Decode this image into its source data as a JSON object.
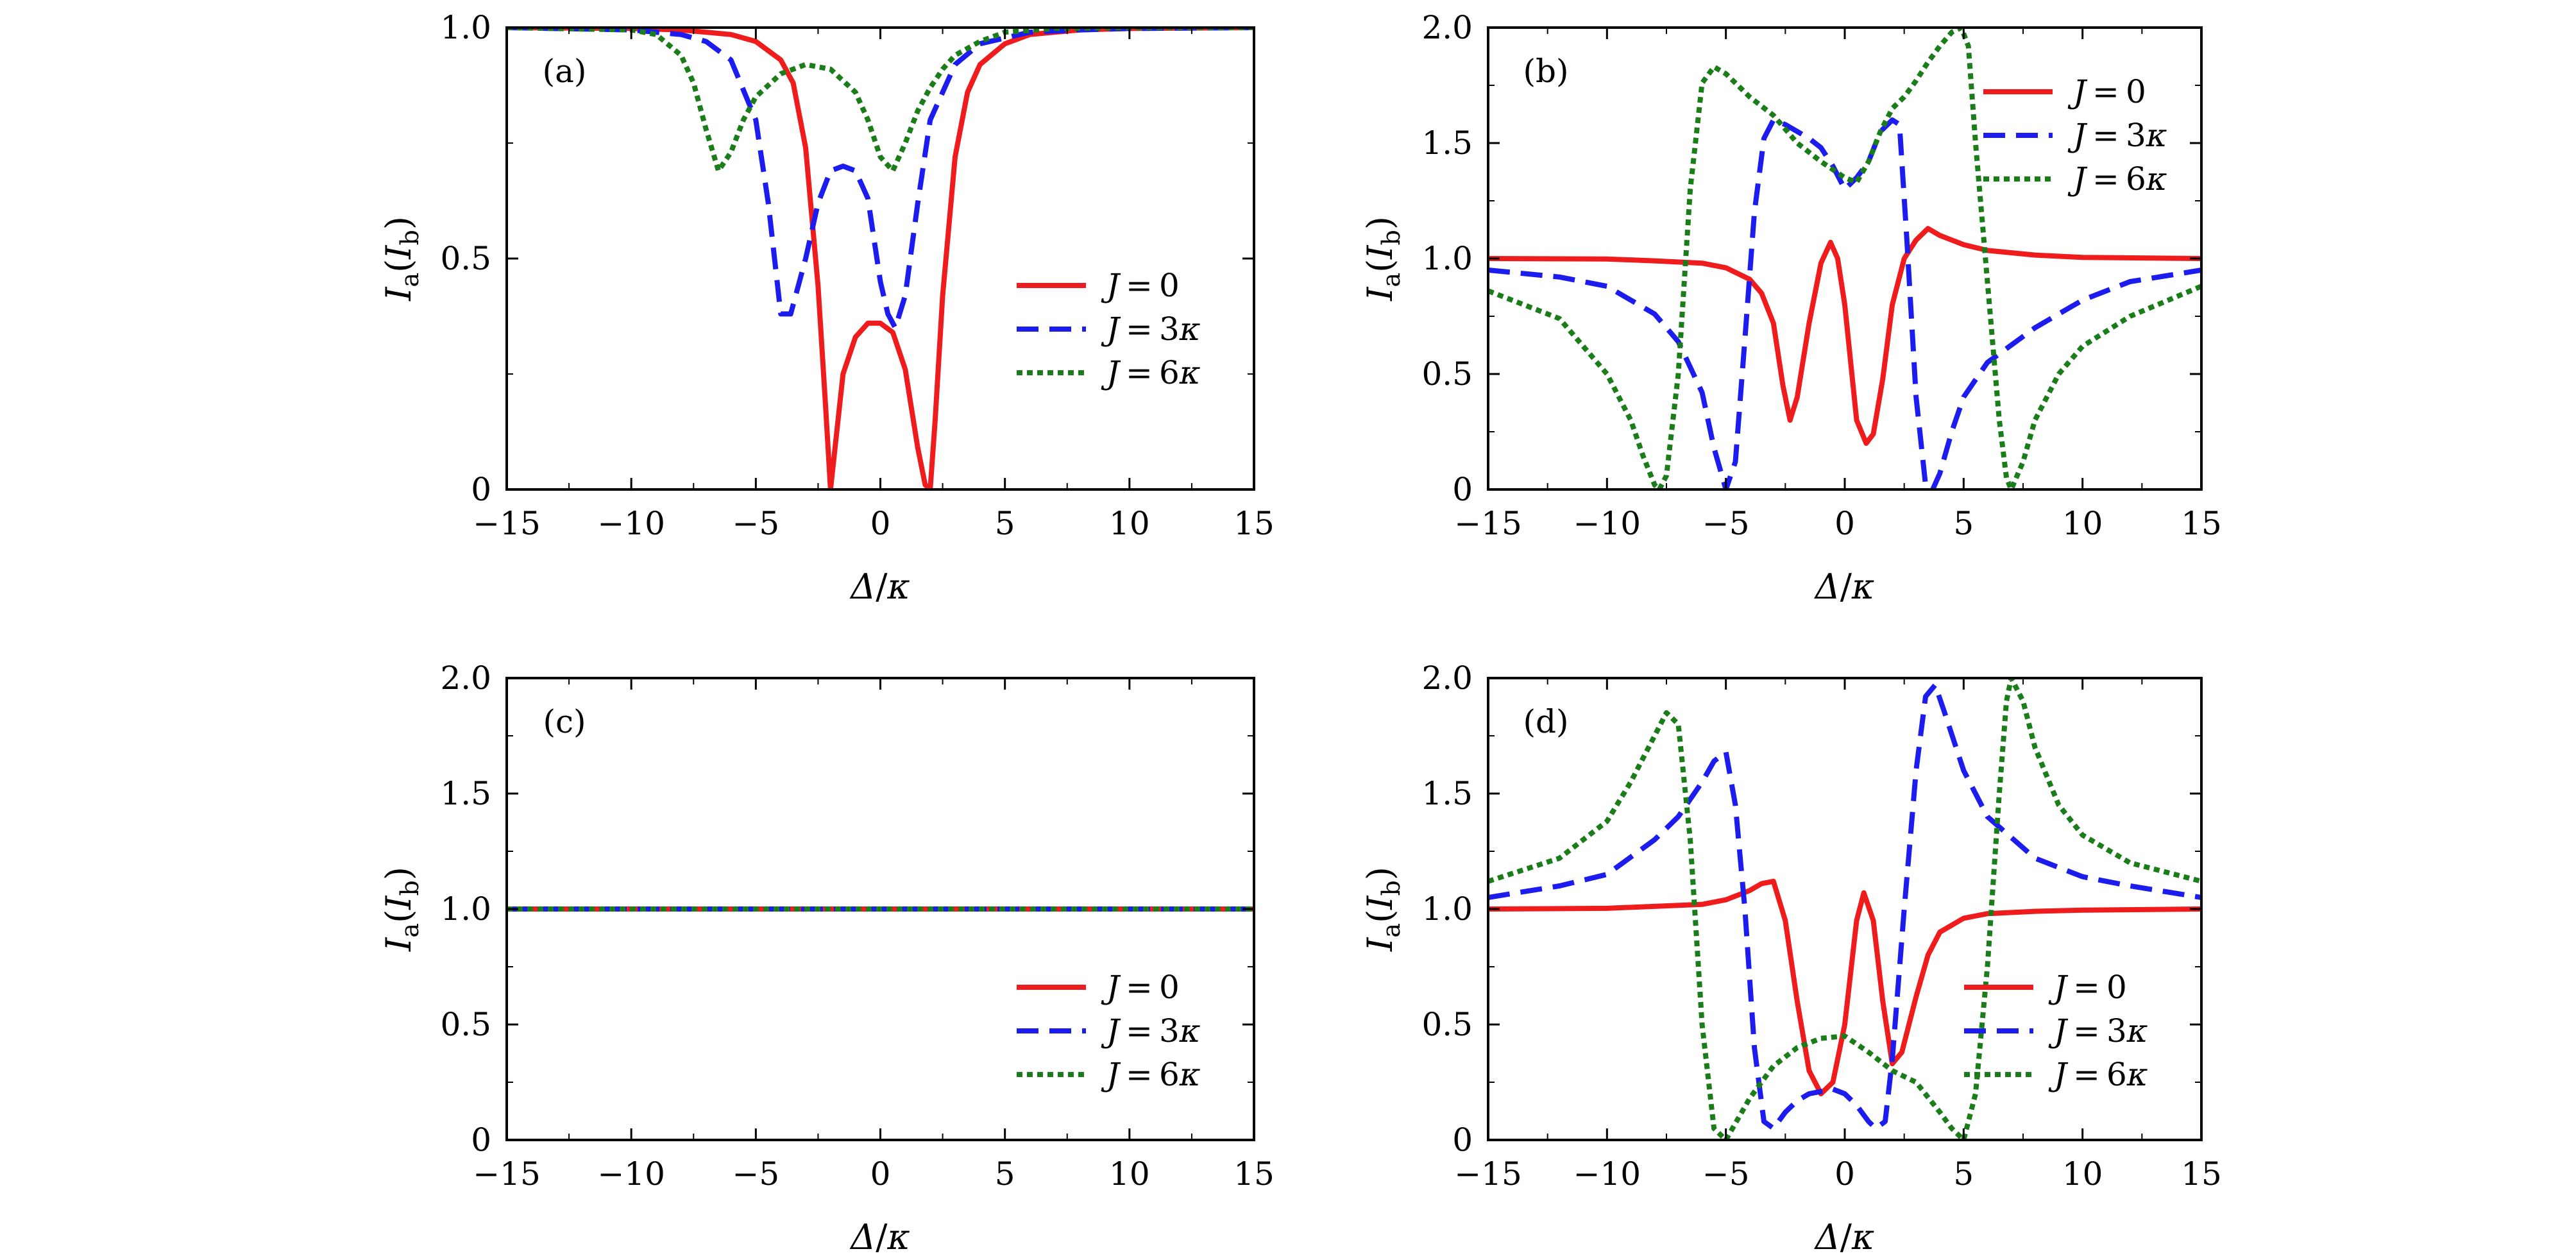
{
  "chart_data": [
    {
      "type": "line",
      "panel_label": "(a)",
      "xlabel": "Δ/κ",
      "ylabel": "Ia(Ib)",
      "xlim": [
        -15,
        15
      ],
      "ylim": [
        0,
        1
      ],
      "xticks": [
        -15,
        -10,
        -5,
        0,
        5,
        10,
        15
      ],
      "xtick_labels": [
        "−15",
        "−10",
        "−5",
        "0",
        "5",
        "10",
        "15"
      ],
      "yticks": [
        0,
        0.5,
        1.0
      ],
      "ytick_labels": [
        "0",
        "0.5",
        "1.0"
      ],
      "legend_position": "center-right",
      "series": [
        {
          "name": "J=0",
          "color": "#ee1c1c",
          "style": "solid",
          "x": [
            -15,
            -10,
            -8,
            -6,
            -5,
            -4,
            -3.5,
            -3,
            -2.5,
            -2.2,
            -2,
            -1.8,
            -1.5,
            -1,
            -0.5,
            0,
            0.5,
            1,
            1.5,
            1.8,
            2,
            2.2,
            2.5,
            3,
            3.5,
            4,
            5,
            6,
            8,
            10,
            15
          ],
          "y": [
            1.0,
            0.998,
            0.995,
            0.985,
            0.97,
            0.93,
            0.88,
            0.74,
            0.44,
            0.18,
            0.0,
            0.1,
            0.25,
            0.33,
            0.36,
            0.36,
            0.34,
            0.26,
            0.09,
            0.01,
            0.0,
            0.15,
            0.42,
            0.72,
            0.86,
            0.92,
            0.965,
            0.985,
            0.995,
            0.998,
            1.0
          ]
        },
        {
          "name": "J=3κ",
          "color": "#1c1cee",
          "style": "dashed",
          "x": [
            -15,
            -10,
            -8,
            -7,
            -6,
            -5,
            -4.5,
            -4,
            -3.6,
            -3,
            -2.5,
            -2,
            -1.5,
            -1,
            -0.5,
            0,
            0.3,
            0.6,
            1,
            1.5,
            2,
            3,
            4,
            6,
            8,
            10,
            15
          ],
          "y": [
            1.0,
            0.995,
            0.985,
            0.97,
            0.93,
            0.8,
            0.62,
            0.38,
            0.38,
            0.5,
            0.62,
            0.69,
            0.7,
            0.69,
            0.63,
            0.45,
            0.38,
            0.35,
            0.42,
            0.62,
            0.8,
            0.92,
            0.965,
            0.99,
            0.995,
            0.998,
            1.0
          ]
        },
        {
          "name": "J=6κ",
          "color": "#1a7d1a",
          "style": "dotted",
          "x": [
            -15,
            -10,
            -9,
            -8,
            -7.5,
            -7,
            -6.5,
            -6,
            -5.5,
            -5,
            -4,
            -3,
            -2,
            -1,
            -0.5,
            0,
            0.5,
            1,
            1.5,
            2,
            2.5,
            3,
            4,
            5,
            7,
            10,
            15
          ],
          "y": [
            1.0,
            0.995,
            0.985,
            0.94,
            0.88,
            0.78,
            0.69,
            0.73,
            0.8,
            0.85,
            0.9,
            0.92,
            0.91,
            0.86,
            0.8,
            0.72,
            0.69,
            0.75,
            0.82,
            0.87,
            0.91,
            0.94,
            0.97,
            0.99,
            0.998,
            1.0,
            1.0
          ]
        }
      ]
    },
    {
      "type": "line",
      "panel_label": "(b)",
      "xlabel": "Δ/κ",
      "ylabel": "Ia(Ib)",
      "xlim": [
        -15,
        15
      ],
      "ylim": [
        0,
        2
      ],
      "xticks": [
        -15,
        -10,
        -5,
        0,
        5,
        10,
        15
      ],
      "xtick_labels": [
        "−15",
        "−10",
        "−5",
        "0",
        "5",
        "10",
        "15"
      ],
      "yticks": [
        0,
        0.5,
        1.0,
        1.5,
        2.0
      ],
      "ytick_labels": [
        "0",
        "0.5",
        "1.0",
        "1.5",
        "2.0"
      ],
      "legend_position": "top-right",
      "series": [
        {
          "name": "J=0",
          "color": "#ee1c1c",
          "style": "solid",
          "x": [
            -15,
            -10,
            -8,
            -6,
            -5,
            -4,
            -3.5,
            -3,
            -2.6,
            -2.3,
            -2,
            -1.5,
            -1,
            -0.6,
            -0.3,
            0,
            0.5,
            0.9,
            1.2,
            1.6,
            2,
            2.5,
            3,
            3.5,
            4,
            5,
            6,
            8,
            10,
            15
          ],
          "y": [
            1.0,
            0.998,
            0.99,
            0.98,
            0.96,
            0.91,
            0.85,
            0.72,
            0.45,
            0.3,
            0.4,
            0.72,
            0.98,
            1.07,
            1.0,
            0.8,
            0.3,
            0.2,
            0.24,
            0.48,
            0.8,
            1.0,
            1.08,
            1.13,
            1.1,
            1.06,
            1.035,
            1.015,
            1.005,
            1.0
          ]
        },
        {
          "name": "J=3κ",
          "color": "#1c1cee",
          "style": "dashed",
          "x": [
            -15,
            -12,
            -10,
            -8,
            -7,
            -6,
            -5.5,
            -5,
            -4.6,
            -4.2,
            -3.8,
            -3.4,
            -3,
            -2.5,
            -2,
            -1.5,
            -1,
            -0.5,
            0,
            0.5,
            1,
            1.5,
            2,
            2.3,
            2.6,
            3,
            3.4,
            3.7,
            4,
            4.5,
            5,
            6,
            8,
            10,
            12,
            15
          ],
          "y": [
            0.95,
            0.92,
            0.88,
            0.76,
            0.64,
            0.42,
            0.18,
            0.0,
            0.12,
            0.65,
            1.2,
            1.52,
            1.6,
            1.58,
            1.55,
            1.52,
            1.48,
            1.4,
            1.3,
            1.35,
            1.42,
            1.55,
            1.6,
            1.58,
            1.1,
            0.4,
            0.02,
            0.0,
            0.07,
            0.25,
            0.4,
            0.55,
            0.7,
            0.82,
            0.9,
            0.95
          ]
        },
        {
          "name": "J=6κ",
          "color": "#1a7d1a",
          "style": "dotted",
          "x": [
            -15,
            -12,
            -10,
            -9,
            -8.5,
            -8,
            -7.8,
            -7.5,
            -7,
            -6.5,
            -6,
            -5.5,
            -5,
            -4,
            -3,
            -2,
            -1,
            0,
            0.5,
            1,
            1.5,
            2,
            2.5,
            3,
            3.5,
            4,
            4.5,
            4.9,
            5.2,
            5.5,
            6,
            6.5,
            6.8,
            7,
            7.5,
            8,
            9,
            10,
            12,
            15
          ],
          "y": [
            0.86,
            0.74,
            0.5,
            0.3,
            0.15,
            0.02,
            0.0,
            0.06,
            0.5,
            1.3,
            1.76,
            1.83,
            1.8,
            1.7,
            1.62,
            1.5,
            1.42,
            1.35,
            1.33,
            1.42,
            1.55,
            1.65,
            1.7,
            1.77,
            1.85,
            1.92,
            1.98,
            2.0,
            1.92,
            1.5,
            0.9,
            0.3,
            0.05,
            0.0,
            0.12,
            0.3,
            0.5,
            0.62,
            0.75,
            0.88
          ]
        }
      ]
    },
    {
      "type": "line",
      "panel_label": "(c)",
      "xlabel": "Δ/κ",
      "ylabel": "Ia(Ib)",
      "xlim": [
        -15,
        15
      ],
      "ylim": [
        0,
        2
      ],
      "xticks": [
        -15,
        -10,
        -5,
        0,
        5,
        10,
        15
      ],
      "xtick_labels": [
        "−15",
        "−10",
        "−5",
        "0",
        "5",
        "10",
        "15"
      ],
      "yticks": [
        0,
        0.5,
        1.0,
        1.5,
        2.0
      ],
      "ytick_labels": [
        "0",
        "0.5",
        "1.0",
        "1.5",
        "2.0"
      ],
      "legend_position": "bottom-right",
      "series": [
        {
          "name": "J=0",
          "color": "#ee1c1c",
          "style": "solid",
          "x": [
            -15,
            15
          ],
          "y": [
            1.0,
            1.0
          ]
        },
        {
          "name": "J=3κ",
          "color": "#1c1cee",
          "style": "dashed",
          "x": [
            -15,
            15
          ],
          "y": [
            1.0,
            1.0
          ]
        },
        {
          "name": "J=6κ",
          "color": "#1a7d1a",
          "style": "dotted",
          "x": [
            -15,
            15
          ],
          "y": [
            1.0,
            1.0
          ]
        }
      ]
    },
    {
      "type": "line",
      "panel_label": "(d)",
      "xlabel": "Δ/κ",
      "ylabel": "Ia(Ib)",
      "xlim": [
        -15,
        15
      ],
      "ylim": [
        0,
        2
      ],
      "xticks": [
        -15,
        -10,
        -5,
        0,
        5,
        10,
        15
      ],
      "xtick_labels": [
        "−15",
        "−10",
        "−5",
        "0",
        "5",
        "10",
        "15"
      ],
      "yticks": [
        0,
        0.5,
        1.0,
        1.5,
        2.0
      ],
      "ytick_labels": [
        "0",
        "0.5",
        "1.0",
        "1.5",
        "2.0"
      ],
      "legend_position": "bottom-right",
      "series": [
        {
          "name": "J=0",
          "color": "#ee1c1c",
          "style": "solid",
          "x": [
            -15,
            -10,
            -6,
            -5,
            -4,
            -3.5,
            -3,
            -2.5,
            -2,
            -1.5,
            -1,
            -0.5,
            0,
            0.5,
            0.8,
            1.2,
            1.6,
            2,
            2.4,
            3,
            3.5,
            4,
            5,
            6,
            8,
            10,
            15
          ],
          "y": [
            1.0,
            1.003,
            1.02,
            1.04,
            1.08,
            1.11,
            1.12,
            0.95,
            0.6,
            0.3,
            0.2,
            0.25,
            0.5,
            0.95,
            1.07,
            0.95,
            0.6,
            0.33,
            0.38,
            0.62,
            0.8,
            0.9,
            0.96,
            0.98,
            0.99,
            0.995,
            1.0
          ]
        },
        {
          "name": "J=3κ",
          "color": "#1c1cee",
          "style": "dashed",
          "x": [
            -15,
            -12,
            -10,
            -8,
            -7,
            -6,
            -5.5,
            -5,
            -4.6,
            -4.2,
            -3.8,
            -3.4,
            -3,
            -2.5,
            -2,
            -1.5,
            -1,
            -0.5,
            0,
            0.5,
            1,
            1.3,
            1.7,
            2,
            2.5,
            3,
            3.4,
            3.8,
            4.2,
            5,
            6,
            8,
            10,
            12,
            15
          ],
          "y": [
            1.05,
            1.1,
            1.15,
            1.3,
            1.4,
            1.55,
            1.64,
            1.68,
            1.45,
            1.0,
            0.4,
            0.08,
            0.05,
            0.12,
            0.17,
            0.2,
            0.21,
            0.22,
            0.2,
            0.15,
            0.08,
            0.05,
            0.08,
            0.35,
            1.0,
            1.6,
            1.92,
            1.97,
            1.85,
            1.6,
            1.4,
            1.22,
            1.14,
            1.1,
            1.05
          ]
        },
        {
          "name": "J=6κ",
          "color": "#1a7d1a",
          "style": "dotted",
          "x": [
            -15,
            -12,
            -10,
            -9,
            -8,
            -7.5,
            -7,
            -6.5,
            -6,
            -5.5,
            -5,
            -4,
            -3,
            -2,
            -1,
            0,
            1,
            2,
            3,
            4,
            4.5,
            5,
            5.5,
            6,
            6.5,
            6.8,
            7,
            7.5,
            8,
            9,
            10,
            12,
            15
          ],
          "y": [
            1.12,
            1.22,
            1.38,
            1.55,
            1.75,
            1.85,
            1.8,
            1.3,
            0.5,
            0.05,
            0.0,
            0.18,
            0.32,
            0.4,
            0.44,
            0.45,
            0.38,
            0.3,
            0.25,
            0.12,
            0.05,
            0.0,
            0.2,
            0.75,
            1.5,
            1.9,
            2.0,
            1.9,
            1.7,
            1.45,
            1.32,
            1.2,
            1.12
          ]
        }
      ]
    }
  ]
}
